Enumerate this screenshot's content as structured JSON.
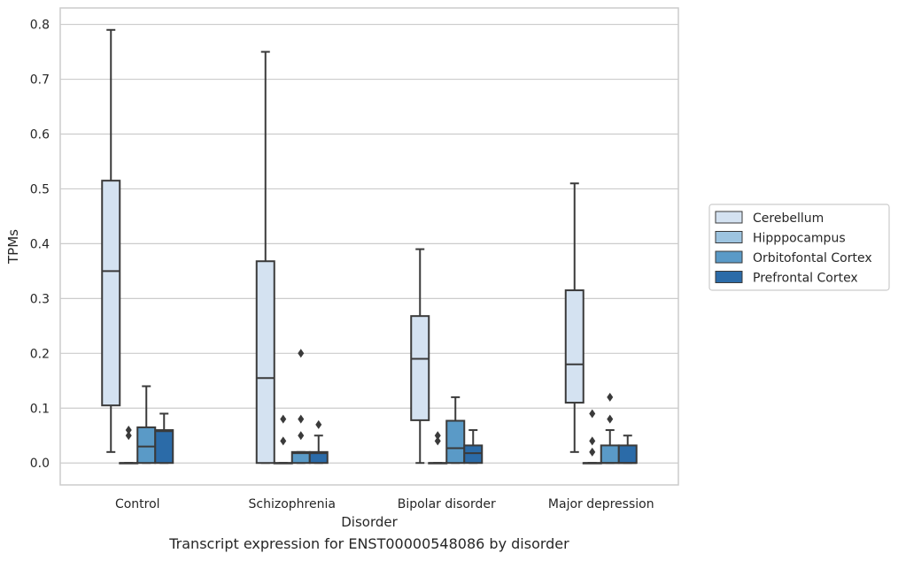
{
  "caption": "Transcript expression for ENST00000548086 by disorder",
  "chart_data": {
    "type": "box",
    "xlabel": "Disorder",
    "ylabel": "TPMs",
    "ylim": [
      -0.04,
      0.83
    ],
    "yticks": [
      0.0,
      0.1,
      0.2,
      0.3,
      0.4,
      0.5,
      0.6,
      0.7,
      0.8
    ],
    "ytick_labels": [
      "0.0",
      "0.1",
      "0.2",
      "0.3",
      "0.4",
      "0.5",
      "0.6",
      "0.7",
      "0.8"
    ],
    "grid": true,
    "legend_position": "right",
    "categories": [
      "Control",
      "Schizophrenia",
      "Bipolar disorder",
      "Major depression"
    ],
    "series": [
      {
        "name": "Cerebellum",
        "color": "#d4e2f1",
        "boxes": [
          {
            "q1": 0.105,
            "median": 0.35,
            "q3": 0.515,
            "whisker_low": 0.02,
            "whisker_high": 0.79,
            "outliers": []
          },
          {
            "q1": 0.0,
            "median": 0.155,
            "q3": 0.368,
            "whisker_low": 0.0,
            "whisker_high": 0.75,
            "outliers": []
          },
          {
            "q1": 0.078,
            "median": 0.19,
            "q3": 0.268,
            "whisker_low": 0.0,
            "whisker_high": 0.39,
            "outliers": []
          },
          {
            "q1": 0.11,
            "median": 0.18,
            "q3": 0.315,
            "whisker_low": 0.02,
            "whisker_high": 0.51,
            "outliers": []
          }
        ]
      },
      {
        "name": "Hipppocampus",
        "color": "#9dc4e0",
        "boxes": [
          {
            "q1": 0.0,
            "median": 0.0,
            "q3": 0.0,
            "whisker_low": 0.0,
            "whisker_high": 0.0,
            "outliers": [
              0.05,
              0.06
            ]
          },
          {
            "q1": 0.0,
            "median": 0.0,
            "q3": 0.0,
            "whisker_low": 0.0,
            "whisker_high": 0.0,
            "outliers": [
              0.04,
              0.08
            ]
          },
          {
            "q1": 0.0,
            "median": 0.0,
            "q3": 0.0,
            "whisker_low": 0.0,
            "whisker_high": 0.0,
            "outliers": [
              0.04,
              0.05
            ]
          },
          {
            "q1": 0.0,
            "median": 0.0,
            "q3": 0.0,
            "whisker_low": 0.0,
            "whisker_high": 0.0,
            "outliers": [
              0.02,
              0.04,
              0.09
            ]
          }
        ]
      },
      {
        "name": "Orbitofontal Cortex",
        "color": "#5a9ac7",
        "boxes": [
          {
            "q1": 0.0,
            "median": 0.03,
            "q3": 0.065,
            "whisker_low": 0.0,
            "whisker_high": 0.14,
            "outliers": []
          },
          {
            "q1": 0.0,
            "median": 0.018,
            "q3": 0.02,
            "whisker_low": 0.0,
            "whisker_high": 0.02,
            "outliers": [
              0.05,
              0.08,
              0.2
            ]
          },
          {
            "q1": 0.0,
            "median": 0.027,
            "q3": 0.077,
            "whisker_low": 0.0,
            "whisker_high": 0.12,
            "outliers": []
          },
          {
            "q1": 0.0,
            "median": 0.0,
            "q3": 0.032,
            "whisker_low": 0.0,
            "whisker_high": 0.06,
            "outliers": [
              0.08,
              0.12
            ]
          }
        ]
      },
      {
        "name": "Prefrontal Cortex",
        "color": "#2b6ba8",
        "boxes": [
          {
            "q1": 0.0,
            "median": 0.058,
            "q3": 0.06,
            "whisker_low": 0.0,
            "whisker_high": 0.09,
            "outliers": []
          },
          {
            "q1": 0.0,
            "median": 0.018,
            "q3": 0.02,
            "whisker_low": 0.0,
            "whisker_high": 0.05,
            "outliers": [
              0.07
            ]
          },
          {
            "q1": 0.0,
            "median": 0.018,
            "q3": 0.032,
            "whisker_low": 0.0,
            "whisker_high": 0.06,
            "outliers": []
          },
          {
            "q1": 0.0,
            "median": 0.0,
            "q3": 0.032,
            "whisker_low": 0.0,
            "whisker_high": 0.05,
            "outliers": []
          }
        ]
      }
    ]
  }
}
